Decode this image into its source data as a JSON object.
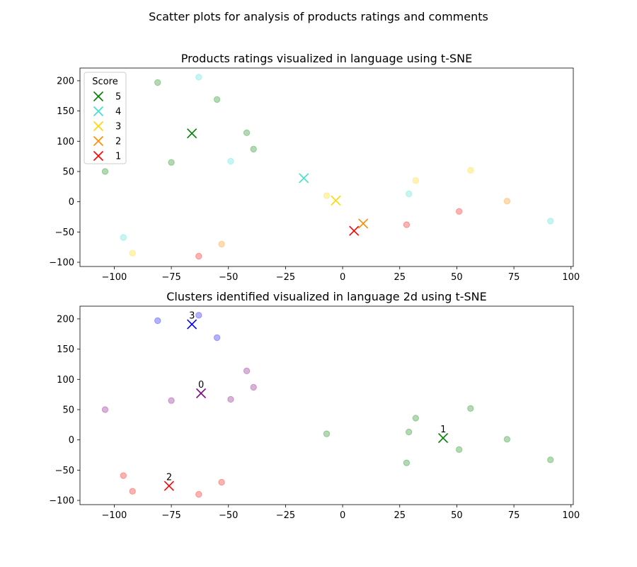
{
  "suptitle": "Scatter plots for analysis of products ratings and comments",
  "chart_data": [
    {
      "type": "scatter",
      "title": "Products ratings visualized in language using t-SNE",
      "xlabel": "",
      "ylabel": "",
      "xlim": [
        -115,
        101
      ],
      "ylim": [
        -107,
        221
      ],
      "xticks": [
        -100,
        -75,
        -50,
        -25,
        0,
        25,
        50,
        75,
        100
      ],
      "yticks": [
        -100,
        -50,
        0,
        50,
        100,
        150,
        200
      ],
      "xtick_labels": [
        "−100",
        "−75",
        "−50",
        "−25",
        "0",
        "25",
        "50",
        "75",
        "100"
      ],
      "ytick_labels": [
        "−100",
        "−50",
        "0",
        "50",
        "100",
        "150",
        "200"
      ],
      "legend": {
        "title": "Score",
        "placement": "upper-left"
      },
      "series": [
        {
          "name": "5",
          "color": "#008000",
          "points": [
            [
              -81,
              197
            ],
            [
              -55,
              169
            ],
            [
              -42,
              114
            ],
            [
              -39,
              87
            ],
            [
              -75,
              65
            ],
            [
              -104,
              50
            ]
          ],
          "centroid": [
            -66,
            113
          ]
        },
        {
          "name": "4",
          "color": "#40e0d0",
          "points": [
            [
              -63,
              206
            ],
            [
              -49,
              67
            ],
            [
              29,
              13
            ],
            [
              91,
              -32
            ],
            [
              -96,
              -59
            ]
          ],
          "centroid": [
            -17,
            39
          ]
        },
        {
          "name": "3",
          "color": "#ffd700",
          "points": [
            [
              32,
              35
            ],
            [
              56,
              52
            ],
            [
              -7,
              10
            ],
            [
              -92,
              -85
            ]
          ],
          "centroid": [
            -3,
            2
          ]
        },
        {
          "name": "2",
          "color": "#ff8c00",
          "points": [
            [
              72,
              1
            ],
            [
              -53,
              -70
            ]
          ],
          "centroid": [
            9,
            -36
          ]
        },
        {
          "name": "1",
          "color": "#ff0000",
          "points": [
            [
              51,
              -16
            ],
            [
              28,
              -38
            ],
            [
              -63,
              -90
            ]
          ],
          "centroid": [
            5,
            -48
          ]
        }
      ]
    },
    {
      "type": "scatter",
      "title": "Clusters identified visualized in language 2d using t-SNE",
      "xlabel": "",
      "ylabel": "",
      "xlim": [
        -115,
        101
      ],
      "ylim": [
        -107,
        221
      ],
      "xticks": [
        -100,
        -75,
        -50,
        -25,
        0,
        25,
        50,
        75,
        100
      ],
      "yticks": [
        -100,
        -50,
        0,
        50,
        100,
        150,
        200
      ],
      "xtick_labels": [
        "−100",
        "−75",
        "−50",
        "−25",
        "0",
        "25",
        "50",
        "75",
        "100"
      ],
      "ytick_labels": [
        "−100",
        "−50",
        "0",
        "50",
        "100",
        "150",
        "200"
      ],
      "series": [
        {
          "name": "0",
          "color": "#800080",
          "points": [
            [
              -42,
              114
            ],
            [
              -39,
              87
            ],
            [
              -49,
              67
            ],
            [
              -75,
              65
            ],
            [
              -104,
              50
            ]
          ],
          "centroid": [
            -62,
            77
          ]
        },
        {
          "name": "1",
          "color": "#008000",
          "points": [
            [
              32,
              36
            ],
            [
              56,
              52
            ],
            [
              -7,
              10
            ],
            [
              29,
              13
            ],
            [
              72,
              1
            ],
            [
              51,
              -16
            ],
            [
              28,
              -38
            ],
            [
              91,
              -33
            ]
          ],
          "centroid": [
            44,
            3
          ]
        },
        {
          "name": "2",
          "color": "#ff0000",
          "points": [
            [
              -96,
              -59
            ],
            [
              -92,
              -85
            ],
            [
              -53,
              -70
            ],
            [
              -63,
              -90
            ]
          ],
          "centroid": [
            -76,
            -76
          ]
        },
        {
          "name": "3",
          "color": "#0000ff",
          "points": [
            [
              -81,
              197
            ],
            [
              -63,
              206
            ],
            [
              -55,
              169
            ]
          ],
          "centroid": [
            -66,
            191
          ]
        }
      ]
    }
  ]
}
